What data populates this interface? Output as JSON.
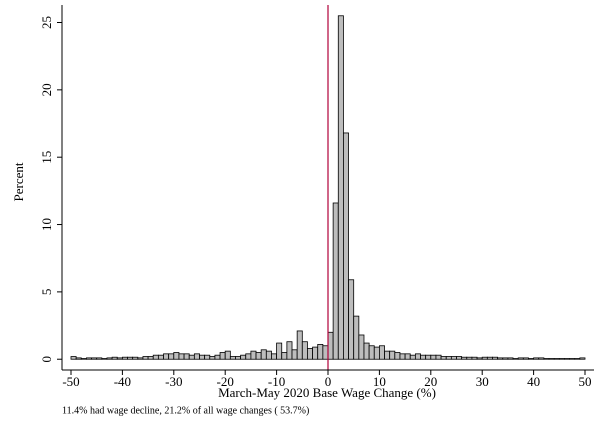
{
  "chart_data": {
    "type": "histogram",
    "xlabel": "March-May 2020 Base Wage Change (%)",
    "ylabel": "Percent",
    "note": "11.4% had wage decline,  21.2% of all wage changes ( 53.7%)",
    "bins": [
      -50,
      -49,
      -48,
      -47,
      -46,
      -45,
      -44,
      -43,
      -42,
      -41,
      -40,
      -39,
      -38,
      -37,
      -36,
      -35,
      -34,
      -33,
      -32,
      -31,
      -30,
      -29,
      -28,
      -27,
      -26,
      -25,
      -24,
      -23,
      -22,
      -21,
      -20,
      -19,
      -18,
      -17,
      -16,
      -15,
      -14,
      -13,
      -12,
      -11,
      -10,
      -9,
      -8,
      -7,
      -6,
      -5,
      -4,
      -3,
      -2,
      -1,
      0,
      1,
      2,
      3,
      4,
      5,
      6,
      7,
      8,
      9,
      10,
      11,
      12,
      13,
      14,
      15,
      16,
      17,
      18,
      19,
      20,
      21,
      22,
      23,
      24,
      25,
      26,
      27,
      28,
      29,
      30,
      31,
      32,
      33,
      34,
      35,
      36,
      37,
      38,
      39,
      40,
      41,
      42,
      43,
      44,
      45,
      46,
      47,
      48,
      49,
      50
    ],
    "counts": [
      0.2,
      0.1,
      0.05,
      0.1,
      0.1,
      0.1,
      0.05,
      0.1,
      0.15,
      0.1,
      0.15,
      0.15,
      0.15,
      0.1,
      0.2,
      0.2,
      0.3,
      0.3,
      0.4,
      0.4,
      0.5,
      0.4,
      0.4,
      0.3,
      0.4,
      0.3,
      0.3,
      0.2,
      0.3,
      0.5,
      0.6,
      0.2,
      0.2,
      0.3,
      0.4,
      0.6,
      0.5,
      0.7,
      0.6,
      0.4,
      1.2,
      0.5,
      1.3,
      0.7,
      2.1,
      1.3,
      0.8,
      0.9,
      1.1,
      1.0,
      2.0,
      11.6,
      25.5,
      16.8,
      5.9,
      3.2,
      1.8,
      1.2,
      1.0,
      0.9,
      1.0,
      0.6,
      0.6,
      0.5,
      0.4,
      0.4,
      0.3,
      0.4,
      0.3,
      0.3,
      0.3,
      0.3,
      0.2,
      0.2,
      0.2,
      0.2,
      0.15,
      0.15,
      0.15,
      0.1,
      0.15,
      0.15,
      0.15,
      0.1,
      0.1,
      0.1,
      0.05,
      0.1,
      0.1,
      0.05,
      0.1,
      0.1,
      0.05,
      0.05,
      0.05,
      0.05,
      0.05,
      0.05,
      0.05,
      0.1
    ],
    "color": "#bdbdbd",
    "vline": 0,
    "vline_color": "#b0003a",
    "xlim": [
      -51.75,
      51.75
    ],
    "ylim": [
      -0.8,
      26.3
    ],
    "xticks": [
      -50,
      -40,
      -30,
      -20,
      -10,
      0,
      10,
      20,
      30,
      40,
      50
    ],
    "yticks": [
      0,
      5,
      10,
      15,
      20,
      25
    ]
  }
}
